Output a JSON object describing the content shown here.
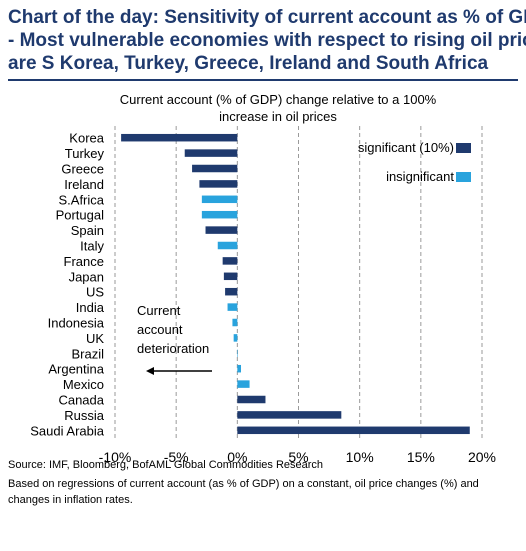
{
  "headline": {
    "line1": "Chart of the day: Sensitivity of current account as % of GDP",
    "line2": "- Most vulnerable economies with respect to rising oil price",
    "line3": "are S Korea, Turkey, Greece, Ireland and South Africa"
  },
  "source": "Source: IMF,  Bloomberg, BofAML Global Commodities Research",
  "footnote_line1": "Based on regressions of current account (as % of GDP) on a constant, oil price changes (%) and",
  "footnote_line2": "changes in inflation rates.",
  "colors": {
    "headline": "#1f3a6e",
    "significant": "#1f3a6e",
    "insignificant": "#29a3dd",
    "grid": "#9a9a9a"
  },
  "chart_data": {
    "type": "bar",
    "orientation": "horizontal",
    "title_line1": "Current account (% of GDP) change relative to a 100%",
    "title_line2": "increase in oil prices",
    "xlim": [
      -10,
      20
    ],
    "xticks": [
      "-10%",
      "-5%",
      "0%",
      "5%",
      "10%",
      "15%",
      "20%"
    ],
    "legend": {
      "position": "top-right",
      "significant": "significant (10%)",
      "insignificant": "insignificant"
    },
    "annotation": {
      "line1": "Current",
      "line2": "account",
      "line3": "deterioration",
      "arrow": "left"
    },
    "grid": "vertical-dashed",
    "categories": [
      "Korea",
      "Turkey",
      "Greece",
      "Ireland",
      "S.Africa",
      "Portugal",
      "Spain",
      "Italy",
      "France",
      "Japan",
      "US",
      "India",
      "Indonesia",
      "UK",
      "Brazil",
      "Argentina",
      "Mexico",
      "Canada",
      "Russia",
      "Saudi Arabia"
    ],
    "values": [
      -9.5,
      -4.3,
      -3.7,
      -3.1,
      -2.9,
      -2.9,
      -2.6,
      -1.6,
      -1.2,
      -1.1,
      -1.0,
      -0.8,
      -0.4,
      -0.3,
      0.0,
      0.3,
      1.0,
      2.3,
      8.5,
      19.0
    ],
    "significance": [
      "significant",
      "significant",
      "significant",
      "significant",
      "insignificant",
      "insignificant",
      "significant",
      "insignificant",
      "significant",
      "significant",
      "significant",
      "insignificant",
      "insignificant",
      "insignificant",
      "insignificant",
      "insignificant",
      "insignificant",
      "significant",
      "significant",
      "significant"
    ]
  }
}
